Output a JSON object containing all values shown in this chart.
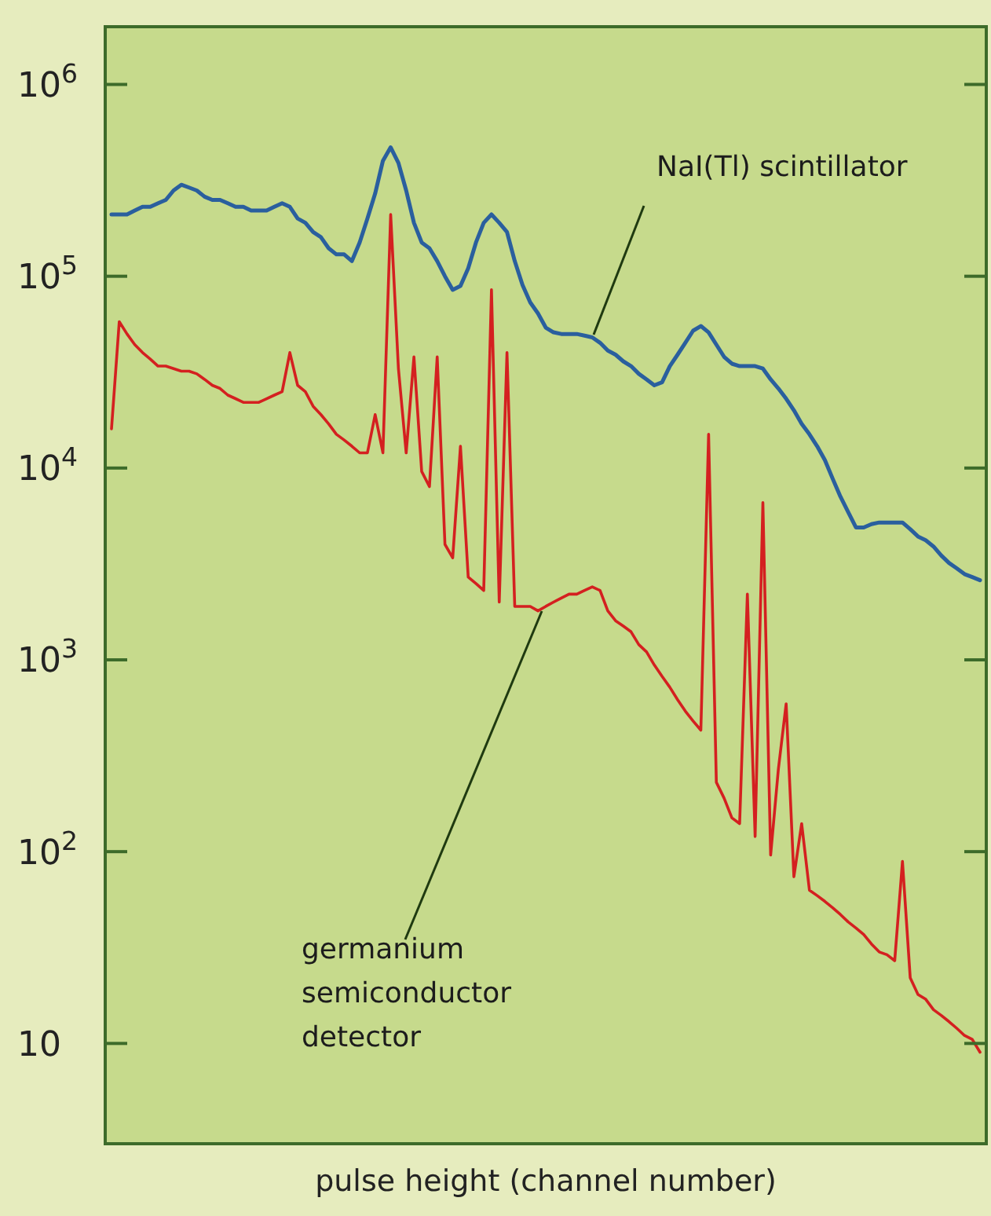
{
  "chart_data": {
    "type": "line",
    "xlabel": "pulse height (channel number)",
    "categories": [
      null,
      null,
      null,
      null,
      null,
      null,
      null,
      null,
      null,
      null,
      null,
      null,
      null,
      null,
      null,
      null,
      null,
      null,
      null,
      null,
      null,
      null,
      null,
      null,
      null,
      null,
      null,
      null,
      null,
      null,
      null,
      null,
      null,
      null,
      null,
      null,
      null,
      null,
      null,
      null,
      null,
      null,
      null,
      null,
      null,
      null,
      null,
      null,
      null,
      null,
      null,
      null,
      null,
      null,
      null,
      null,
      null,
      null,
      null,
      null,
      null,
      null,
      null,
      null,
      null,
      null,
      null,
      null,
      null,
      null,
      null,
      null,
      null,
      null,
      null,
      null,
      null,
      null,
      null,
      null,
      null,
      null,
      null,
      null,
      null,
      null,
      null,
      null,
      null,
      null,
      null,
      null,
      null,
      null,
      null,
      null,
      null,
      null,
      null,
      null,
      null,
      null,
      null,
      null,
      null,
      null,
      null,
      null,
      null,
      null,
      null,
      null,
      null
    ],
    "series": [
      {
        "color": "#2a5f9e",
        "values": [
          210000,
          210000,
          210000,
          220000,
          230000,
          230000,
          240000,
          250000,
          280000,
          300000,
          290000,
          280000,
          260000,
          250000,
          250000,
          240000,
          230000,
          230000,
          220000,
          220000,
          220000,
          230000,
          240000,
          230000,
          200000,
          190000,
          170000,
          160000,
          140000,
          130000,
          130000,
          120000,
          150000,
          200000,
          270000,
          400000,
          470000,
          390000,
          280000,
          190000,
          150000,
          140000,
          120000,
          100000,
          85000,
          89000,
          110000,
          150000,
          190000,
          210000,
          190000,
          170000,
          120000,
          90000,
          73000,
          64000,
          54000,
          51000,
          50000,
          50000,
          50000,
          49000,
          48000,
          45000,
          41000,
          39000,
          36000,
          34000,
          31000,
          29000,
          27000,
          28000,
          34000,
          39000,
          45000,
          52000,
          55000,
          51000,
          44000,
          38000,
          35000,
          34000,
          34000,
          34000,
          33000,
          29000,
          26000,
          23000,
          20000,
          17000,
          15000,
          13000,
          11000,
          8800,
          7100,
          5900,
          4900,
          4900,
          5100,
          5200,
          5200,
          5200,
          5200,
          4800,
          4400,
          4200,
          3900,
          3500,
          3200,
          3000,
          2800,
          2700,
          2600
        ]
      },
      {
        "color": "#d42020",
        "values": [
          16000,
          58000,
          50000,
          44000,
          40000,
          37000,
          34000,
          34000,
          33000,
          32000,
          32000,
          31000,
          29000,
          27000,
          26000,
          24000,
          23000,
          22000,
          22000,
          22000,
          23000,
          24000,
          25000,
          40000,
          27000,
          25000,
          21000,
          19000,
          17000,
          15000,
          14000,
          13000,
          12000,
          12000,
          19000,
          12000,
          210000,
          33000,
          12000,
          38000,
          9600,
          8000,
          38000,
          4000,
          3400,
          13000,
          2700,
          2500,
          2300,
          85000,
          2000,
          40000,
          1900,
          1900,
          1900,
          1800,
          1900,
          2000,
          2100,
          2200,
          2200,
          2300,
          2400,
          2300,
          1800,
          1600,
          1500,
          1400,
          1200,
          1100,
          940,
          820,
          720,
          620,
          540,
          480,
          430,
          15000,
          230,
          190,
          150,
          140,
          2200,
          120,
          6600,
          96,
          270,
          590,
          74,
          140,
          63,
          59,
          55,
          51,
          47,
          43,
          40,
          37,
          33,
          30,
          29,
          27,
          89,
          22,
          18,
          17,
          15,
          14,
          13,
          12,
          11,
          10.5,
          9
        ]
      }
    ],
    "log": true,
    "ylim": [
      3,
      2000000
    ],
    "yticks": [
      10,
      {
        "value": 100,
        "label": "10$^{2}$"
      },
      {
        "value": 1000,
        "label": "10$^{3}$"
      },
      {
        "value": 10000,
        "label": "10$^{4}$"
      },
      {
        "value": 100000,
        "label": "10$^{5}$"
      },
      {
        "value": 1000000,
        "label": "10$^{6}$"
      }
    ],
    "annotations": [
      "NaI(Tl) scintillator",
      "germanium semiconductor detector"
    ],
    "grid": false,
    "legend": false
  }
}
